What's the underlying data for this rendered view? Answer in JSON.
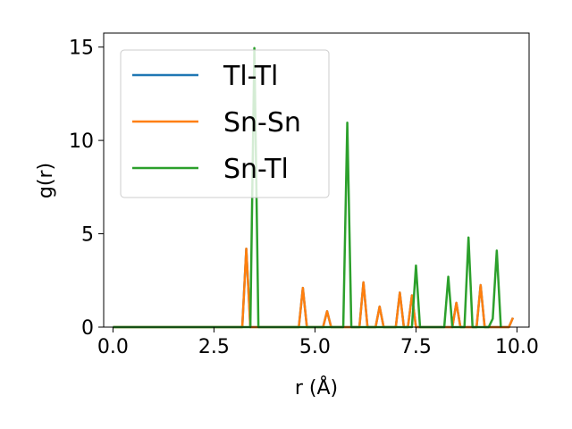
{
  "chart_data": {
    "type": "line",
    "xlabel": "r (Å)",
    "ylabel": "g(r)",
    "xlim": [
      -0.23,
      10.3
    ],
    "ylim": [
      0,
      15.75
    ],
    "xticks": [
      "0.0",
      "2.5",
      "5.0",
      "7.5",
      "10.0"
    ],
    "yticks": [
      "0",
      "5",
      "10",
      "15"
    ],
    "grid": false,
    "legend_position": "top-left",
    "series": [
      {
        "name": "Tl-Tl",
        "color": "#1f77b4",
        "x": [
          0.0,
          3.2,
          3.3,
          3.4,
          4.6,
          4.7,
          4.8,
          5.2,
          5.3,
          5.4,
          6.1,
          6.2,
          6.3,
          6.5,
          6.6,
          6.7,
          7.0,
          7.1,
          7.2,
          7.3,
          7.4,
          7.5,
          8.4,
          8.5,
          8.6,
          9.0,
          9.1,
          9.2,
          9.8,
          9.9
        ],
        "y": [
          0,
          0,
          4.2,
          0,
          0,
          2.1,
          0,
          0,
          0.85,
          0,
          0,
          2.4,
          0,
          0,
          1.1,
          0,
          0,
          1.85,
          0,
          0,
          1.7,
          0,
          0,
          1.3,
          0,
          0,
          2.25,
          0,
          0,
          0.5
        ]
      },
      {
        "name": "Sn-Sn",
        "color": "#ff7f0e",
        "x": [
          0.0,
          3.2,
          3.3,
          3.4,
          4.6,
          4.7,
          4.8,
          5.2,
          5.3,
          5.4,
          6.1,
          6.2,
          6.3,
          6.5,
          6.6,
          6.7,
          7.0,
          7.1,
          7.2,
          7.3,
          7.4,
          7.5,
          8.4,
          8.5,
          8.6,
          9.0,
          9.1,
          9.2,
          9.8,
          9.9
        ],
        "y": [
          0,
          0,
          4.2,
          0,
          0,
          2.1,
          0,
          0,
          0.85,
          0,
          0,
          2.4,
          0,
          0,
          1.1,
          0,
          0,
          1.85,
          0,
          0,
          1.7,
          0,
          0,
          1.3,
          0,
          0,
          2.25,
          0,
          0,
          0.5
        ]
      },
      {
        "name": "Sn-Tl",
        "color": "#2ca02c",
        "x": [
          0.0,
          3.4,
          3.5,
          3.6,
          5.7,
          5.8,
          5.9,
          7.4,
          7.5,
          7.6,
          8.2,
          8.3,
          8.4,
          8.7,
          8.8,
          8.9,
          9.3,
          9.4,
          9.5,
          9.6
        ],
        "y": [
          0,
          0,
          14.95,
          0,
          0,
          10.95,
          0,
          0,
          3.3,
          0,
          0,
          2.7,
          0,
          0,
          4.8,
          0,
          0,
          0.45,
          4.1,
          0
        ]
      }
    ]
  }
}
